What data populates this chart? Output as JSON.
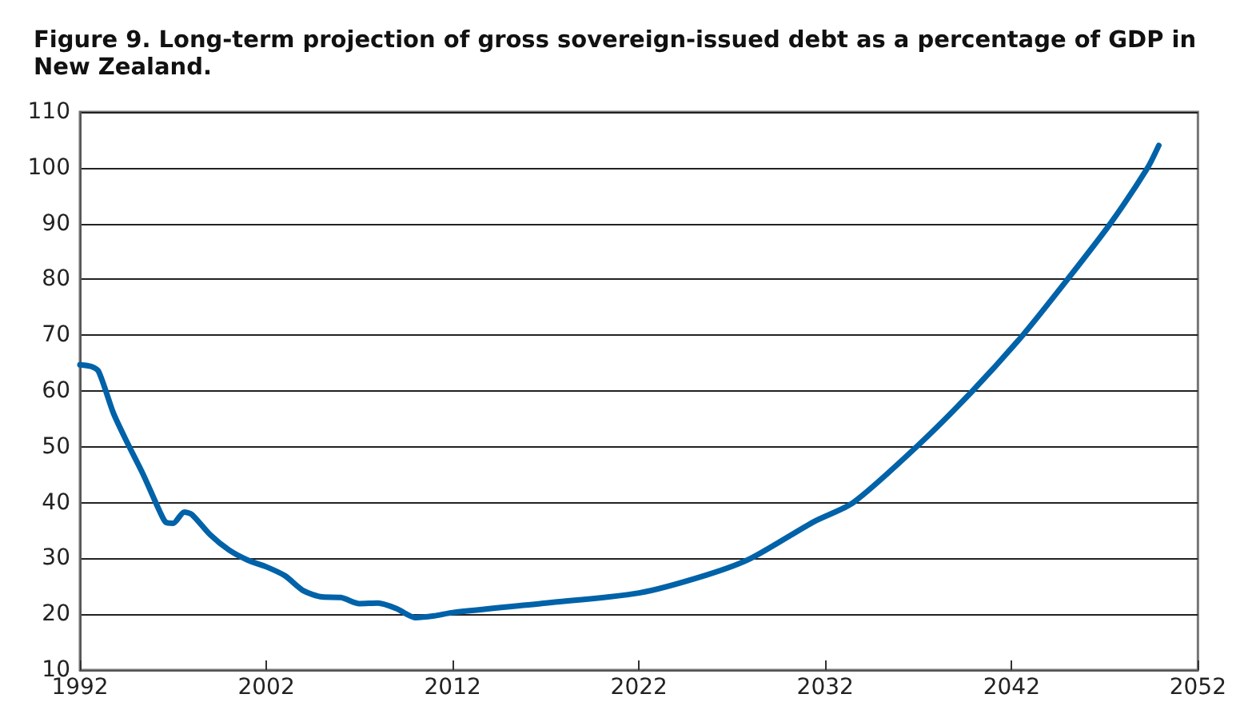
{
  "chart_data": {
    "type": "line",
    "title": "Figure 9. Long-term projection of gross sovereign-issued debt as a percentage of GDP in New Zealand.",
    "x": [
      1992,
      1992.6,
      1993,
      1993.8,
      1994.5,
      1995.4,
      1996.3,
      1996.6,
      1997,
      1997.6,
      1998,
      1999,
      2000,
      2001,
      2002,
      2003,
      2004,
      2005,
      2006,
      2007,
      2008,
      2009,
      2010,
      2011,
      2012,
      2017,
      2022,
      2025.6,
      2028,
      2031.4,
      2033.5,
      2036.9,
      2039.9,
      2042.6,
      2045,
      2047.3,
      2049.3,
      2049.9
    ],
    "series": [
      {
        "color": "#0062a8",
        "values": [
          64.7,
          64.4,
          63.5,
          56,
          51,
          45,
          38.3,
          36.5,
          36.3,
          38.3,
          37.9,
          34.2,
          31.5,
          29.7,
          28.5,
          26.9,
          24.2,
          23.1,
          23,
          21.9,
          22,
          21,
          19.4,
          19.7,
          20.3,
          22,
          23.8,
          27,
          30,
          36.6,
          40,
          50,
          60,
          70,
          80,
          90,
          100,
          104
        ]
      }
    ],
    "xlim": [
      1992,
      2052
    ],
    "xticks": [
      1992,
      2002,
      2012,
      2022,
      2032,
      2042,
      2052
    ],
    "ylim": [
      10,
      110
    ],
    "yticks": [
      10,
      20,
      30,
      40,
      50,
      60,
      70,
      80,
      90,
      100,
      110
    ],
    "grid": "y",
    "line_style": "solid"
  }
}
